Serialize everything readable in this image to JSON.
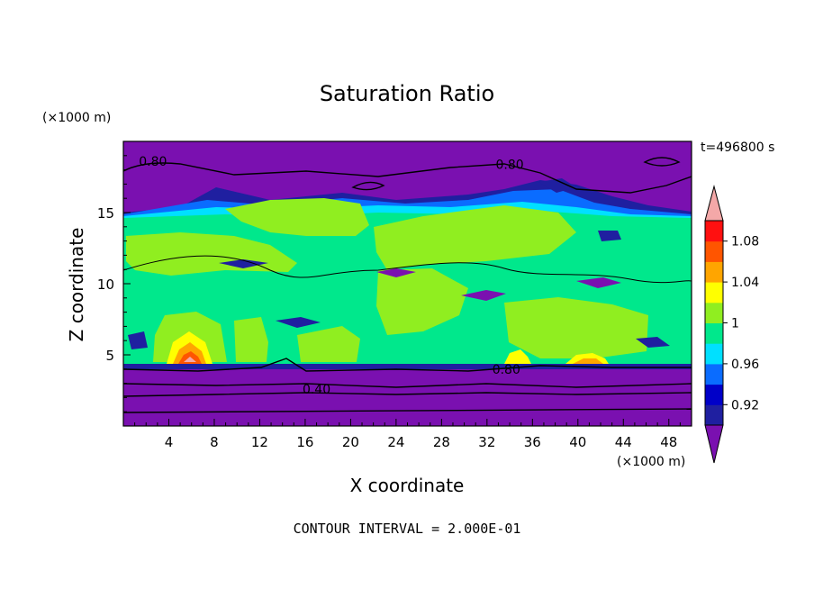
{
  "chart_data": {
    "type": "heatmap",
    "title": "Saturation Ratio",
    "xlabel": "X coordinate",
    "ylabel": "Z coordinate",
    "x_unit": "(×1000 m)",
    "y_unit": "(×1000 m)",
    "time_label": "t=496800 s",
    "footer": "CONTOUR INTERVAL = 2.000E-01",
    "xlim": [
      0,
      50
    ],
    "ylim": [
      0,
      20
    ],
    "x_ticks": [
      4,
      8,
      12,
      16,
      20,
      24,
      28,
      32,
      36,
      40,
      44,
      48
    ],
    "y_ticks": [
      5,
      10,
      15
    ],
    "colorbar": {
      "levels": [
        0.9,
        0.92,
        0.94,
        0.96,
        0.98,
        1.0,
        1.02,
        1.04,
        1.06,
        1.08,
        1.1
      ],
      "tick_labels": [
        "0.92",
        "0.96",
        "1",
        "1.04",
        "1.08"
      ],
      "tick_values": [
        0.92,
        0.96,
        1.0,
        1.04,
        1.08
      ],
      "colors": [
        "#1f1fa0",
        "#0000c8",
        "#0a6cff",
        "#00e0ff",
        "#00e88c",
        "#90ee20",
        "#ffff00",
        "#ffa500",
        "#ff5500",
        "#ff1010"
      ],
      "under_color": "#7a10b0",
      "over_color": "#f4a8a8"
    },
    "contour_labels": [
      {
        "text": "0.80",
        "x": 2.6,
        "z": 18.6
      },
      {
        "text": "0.80",
        "x": 34.0,
        "z": 18.4
      },
      {
        "text": "0.80",
        "x": 33.7,
        "z": 4.0
      },
      {
        "text": "0.40",
        "x": 17.0,
        "z": 2.6
      }
    ]
  }
}
